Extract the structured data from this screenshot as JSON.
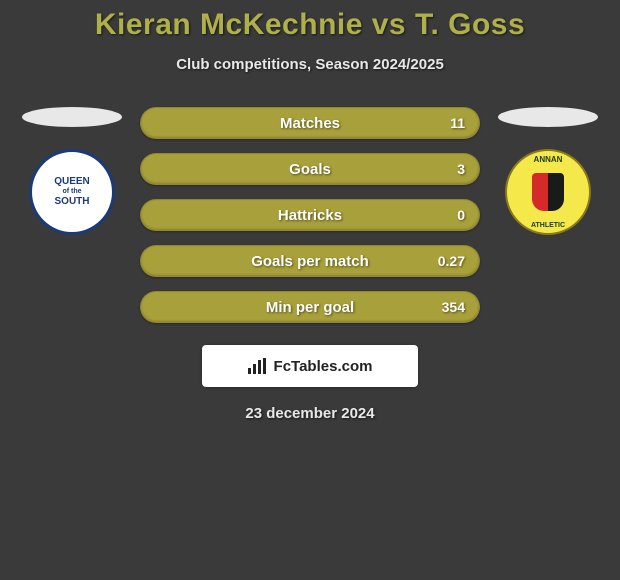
{
  "type": "infographic",
  "background_color": "#3a3a3a",
  "title": {
    "text": "Kieran McKechnie vs T. Goss",
    "color": "#b0b04a",
    "fontsize": 30,
    "fontweight": 900
  },
  "subtitle": {
    "text": "Club competitions, Season 2024/2025",
    "color": "#e8e8e8",
    "fontsize": 15
  },
  "left_team": {
    "name": "Queen of the South",
    "crest_bg": "#ffffff",
    "crest_border": "#1a3a7a",
    "crest_text_top": "QUEEN",
    "crest_text_mid": "of the",
    "crest_text_bottom": "SOUTH"
  },
  "right_team": {
    "name": "Annan Athletic",
    "crest_bg": "#f4e84a",
    "crest_label_top": "ANNAN",
    "crest_label_bottom": "ATHLETIC"
  },
  "stats": [
    {
      "label": "Matches",
      "right_value": "11"
    },
    {
      "label": "Goals",
      "right_value": "3"
    },
    {
      "label": "Hattricks",
      "right_value": "0"
    },
    {
      "label": "Goals per match",
      "right_value": "0.27"
    },
    {
      "label": "Min per goal",
      "right_value": "354"
    }
  ],
  "stat_bar": {
    "bg_color": "#a8a03a",
    "text_color": "#ffffff",
    "height": 32,
    "border_radius": 16,
    "label_fontsize": 15,
    "value_fontsize": 14
  },
  "attribution": {
    "text": "FcTables.com",
    "bg_color": "#ffffff",
    "text_color": "#222222"
  },
  "date": {
    "text": "23 december 2024",
    "color": "#e8e8e8",
    "fontsize": 15
  }
}
